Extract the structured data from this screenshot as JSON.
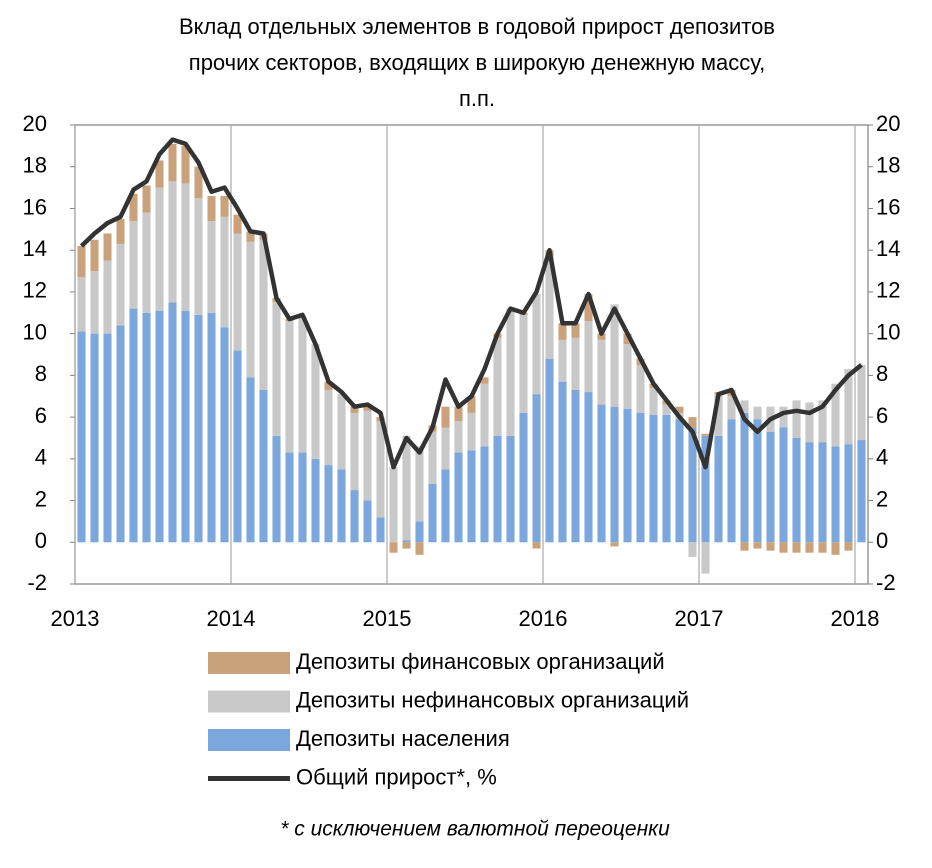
{
  "chart_data": {
    "type": "bar",
    "title": [
      "Вклад отдельных элементов в годовой прирост депозитов",
      "прочих секторов, входящих в широкую денежную массу,",
      "п.п."
    ],
    "categories": [
      "2013",
      null,
      null,
      null,
      null,
      null,
      null,
      null,
      null,
      null,
      null,
      null,
      "2014",
      null,
      null,
      null,
      null,
      null,
      null,
      null,
      null,
      null,
      null,
      null,
      "2015",
      null,
      null,
      null,
      null,
      null,
      null,
      null,
      null,
      null,
      null,
      null,
      "2016",
      null,
      null,
      null,
      null,
      null,
      null,
      null,
      null,
      null,
      null,
      null,
      "2017",
      null,
      null,
      null,
      null,
      null,
      null,
      null,
      null,
      null,
      null,
      null,
      "2018"
    ],
    "series": [
      {
        "name": "Депозиты финансовых организаций",
        "type": "bar",
        "color": "#c9a17b",
        "values": [
          1.5,
          1.5,
          1.3,
          1.2,
          1.3,
          1.3,
          1.3,
          1.8,
          1.8,
          1.5,
          1.2,
          1.0,
          0.9,
          0.5,
          0.3,
          0.2,
          0.1,
          0,
          0,
          0.4,
          0,
          0.3,
          0.3,
          0.2,
          -0.5,
          -0.3,
          -0.6,
          0.3,
          1.0,
          0.7,
          0.8,
          0.3,
          0.2,
          0.1,
          0.1,
          -0.3,
          0.3,
          0.8,
          0.7,
          1.3,
          0.3,
          -0.2,
          0.5,
          0.3,
          0.2,
          0.2,
          0.3,
          0.5,
          0.1,
          0.1,
          0.3,
          -0.4,
          -0.3,
          -0.4,
          -0.5,
          -0.5,
          -0.5,
          -0.5,
          -0.6,
          -0.4,
          0.0
        ]
      },
      {
        "name": "Депозиты нефинансовых организаций",
        "type": "bar",
        "color": "#c8c8c8",
        "values": [
          2.6,
          3.0,
          3.5,
          3.9,
          4.2,
          4.8,
          5.9,
          5.8,
          6.1,
          5.6,
          4.4,
          5.3,
          5.6,
          6.5,
          7.2,
          6.4,
          6.3,
          6.5,
          5.5,
          3.6,
          3.6,
          3.7,
          4.3,
          4.6,
          3.6,
          5.0,
          3.6,
          2.5,
          2.0,
          1.5,
          1.8,
          3.0,
          4.7,
          6.0,
          4.7,
          4.8,
          4.9,
          2.0,
          2.5,
          3.4,
          3.1,
          4.9,
          3.1,
          2.3,
          1.3,
          0.5,
          0.3,
          -0.7,
          -1.5,
          2.0,
          1.1,
          0.6,
          0.6,
          1.2,
          1.0,
          1.8,
          1.9,
          2.0,
          3.0,
          3.6,
          3.6
        ]
      },
      {
        "name": "Депозиты населения",
        "type": "bar",
        "color": "#7ba7dc",
        "values": [
          10.1,
          10.0,
          10.0,
          10.4,
          11.2,
          11.0,
          11.1,
          11.5,
          11.1,
          10.9,
          11.0,
          10.3,
          9.2,
          7.9,
          7.3,
          5.1,
          4.3,
          4.3,
          4.0,
          3.7,
          3.5,
          2.5,
          2.0,
          1.2,
          0.0,
          0.1,
          1.0,
          2.8,
          3.5,
          4.3,
          4.4,
          4.6,
          5.1,
          5.1,
          6.2,
          7.1,
          8.8,
          7.7,
          7.3,
          7.2,
          6.6,
          6.5,
          6.4,
          6.2,
          6.1,
          6.1,
          5.9,
          5.5,
          5.1,
          5.1,
          5.9,
          6.2,
          5.9,
          5.3,
          5.5,
          5.0,
          4.8,
          4.8,
          4.6,
          4.7,
          4.9
        ]
      },
      {
        "name": "Общий прирост*, %",
        "type": "line",
        "color": "#333333",
        "values": [
          14.2,
          14.8,
          15.3,
          15.6,
          16.9,
          17.3,
          18.6,
          19.3,
          19.1,
          18.2,
          16.8,
          17.0,
          16.0,
          14.9,
          14.8,
          11.7,
          10.7,
          10.9,
          9.5,
          7.7,
          7.2,
          6.5,
          6.6,
          6.2,
          3.6,
          5.0,
          4.3,
          5.5,
          7.8,
          6.5,
          7.0,
          8.3,
          10.0,
          11.2,
          11.0,
          12.0,
          14.0,
          10.5,
          10.5,
          11.9,
          10.0,
          11.2,
          10.0,
          8.8,
          7.6,
          6.8,
          6.0,
          5.3,
          3.6,
          7.1,
          7.3,
          5.9,
          5.3,
          5.9,
          6.2,
          6.3,
          6.2,
          6.5,
          7.3,
          8.0,
          8.5
        ]
      }
    ],
    "ylim": [
      -2,
      20
    ],
    "yticks": [
      -2,
      0,
      2,
      4,
      6,
      8,
      10,
      12,
      14,
      16,
      18,
      20
    ],
    "y2lim": [
      -2,
      20
    ],
    "y2ticks": [
      -2,
      0,
      2,
      4,
      6,
      8,
      10,
      12,
      14,
      16,
      18,
      20
    ],
    "footnote": "* с исключением валютной переоценки"
  }
}
